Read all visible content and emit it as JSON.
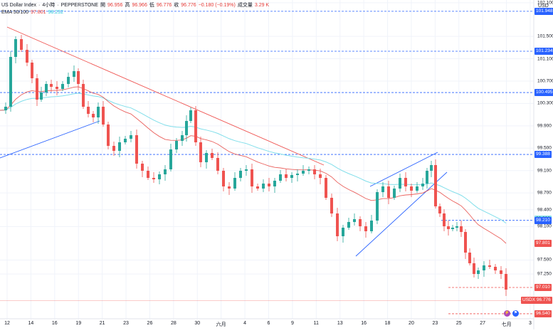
{
  "legend": {
    "symbol": "US Dollar Index",
    "sep1": "·",
    "interval": "4小時",
    "sep2": "·",
    "exchange": "PEPPERSTONE",
    "o_label": "開",
    "o_value": "96.956",
    "h_label": "高",
    "h_value": "96.966",
    "l_label": "低",
    "l_value": "96.776",
    "c_label": "收",
    "c_value": "96.776",
    "change": "−0.180 (−0.19%)",
    "vol_label": "成交量",
    "vol_value": "3.29 K",
    "ema_label": "EMA 50/100",
    "ema50_value": "97.801",
    "ema100_value": "98.232"
  },
  "currency": "USD",
  "colors": {
    "up": "#26a69a",
    "down": "#ef5350",
    "ema50": "#e53935",
    "ema100": "#80deea",
    "trendline_red": "#ef5350",
    "trendline_blue": "#2962ff",
    "hline_blue": "#2962ff",
    "hline_red": "#ef5350",
    "price_pill": "#ef5350",
    "level_pill": "#2962ff"
  },
  "price_labels": [
    {
      "value": "101.948",
      "kind": "level"
    },
    {
      "value": "101.234",
      "kind": "level"
    },
    {
      "value": "100.495",
      "kind": "level"
    },
    {
      "value": "99.388",
      "kind": "level"
    },
    {
      "value": "98.232",
      "kind": "ema100"
    },
    {
      "value": "98.210",
      "kind": "level"
    },
    {
      "value": "97.801",
      "kind": "ema50"
    },
    {
      "value": "97.010",
      "kind": "stop"
    },
    {
      "value": "96.776",
      "kind": "last",
      "prefix": "USDX"
    },
    {
      "value": "96.540",
      "kind": "stop"
    }
  ],
  "chart_data": {
    "type": "candlestick",
    "y_ticks": [
      "102.100",
      "101.500",
      "101.100",
      "100.700",
      "100.300",
      "99.900",
      "99.500",
      "99.100",
      "98.700",
      "98.400",
      "98.100",
      "97.500",
      "97.250"
    ],
    "ylim": [
      96.45,
      102.15
    ],
    "x_ticks": [
      "12",
      "14",
      "16",
      "19",
      "21",
      "23",
      "26",
      "28",
      "30",
      "六月",
      "4",
      "6",
      "9",
      "11",
      "13",
      "16",
      "18",
      "20",
      "23",
      "25",
      "27",
      "七月",
      "3"
    ],
    "horizontal_levels": [
      {
        "value": 101.948,
        "style": "dashed",
        "color": "blue"
      },
      {
        "value": 101.234,
        "style": "dashed",
        "color": "blue"
      },
      {
        "value": 100.495,
        "style": "dashed",
        "color": "blue"
      },
      {
        "value": 99.388,
        "style": "dashed",
        "color": "blue"
      },
      {
        "value": 98.21,
        "style": "dashed",
        "color": "blue"
      },
      {
        "value": 97.01,
        "style": "dashed",
        "color": "red"
      },
      {
        "value": 96.54,
        "style": "dashed",
        "color": "red"
      }
    ],
    "series": [
      {
        "name": "EMA 50",
        "last": 97.801
      },
      {
        "name": "EMA 100",
        "last": 98.232
      }
    ],
    "last_price": 96.776
  }
}
